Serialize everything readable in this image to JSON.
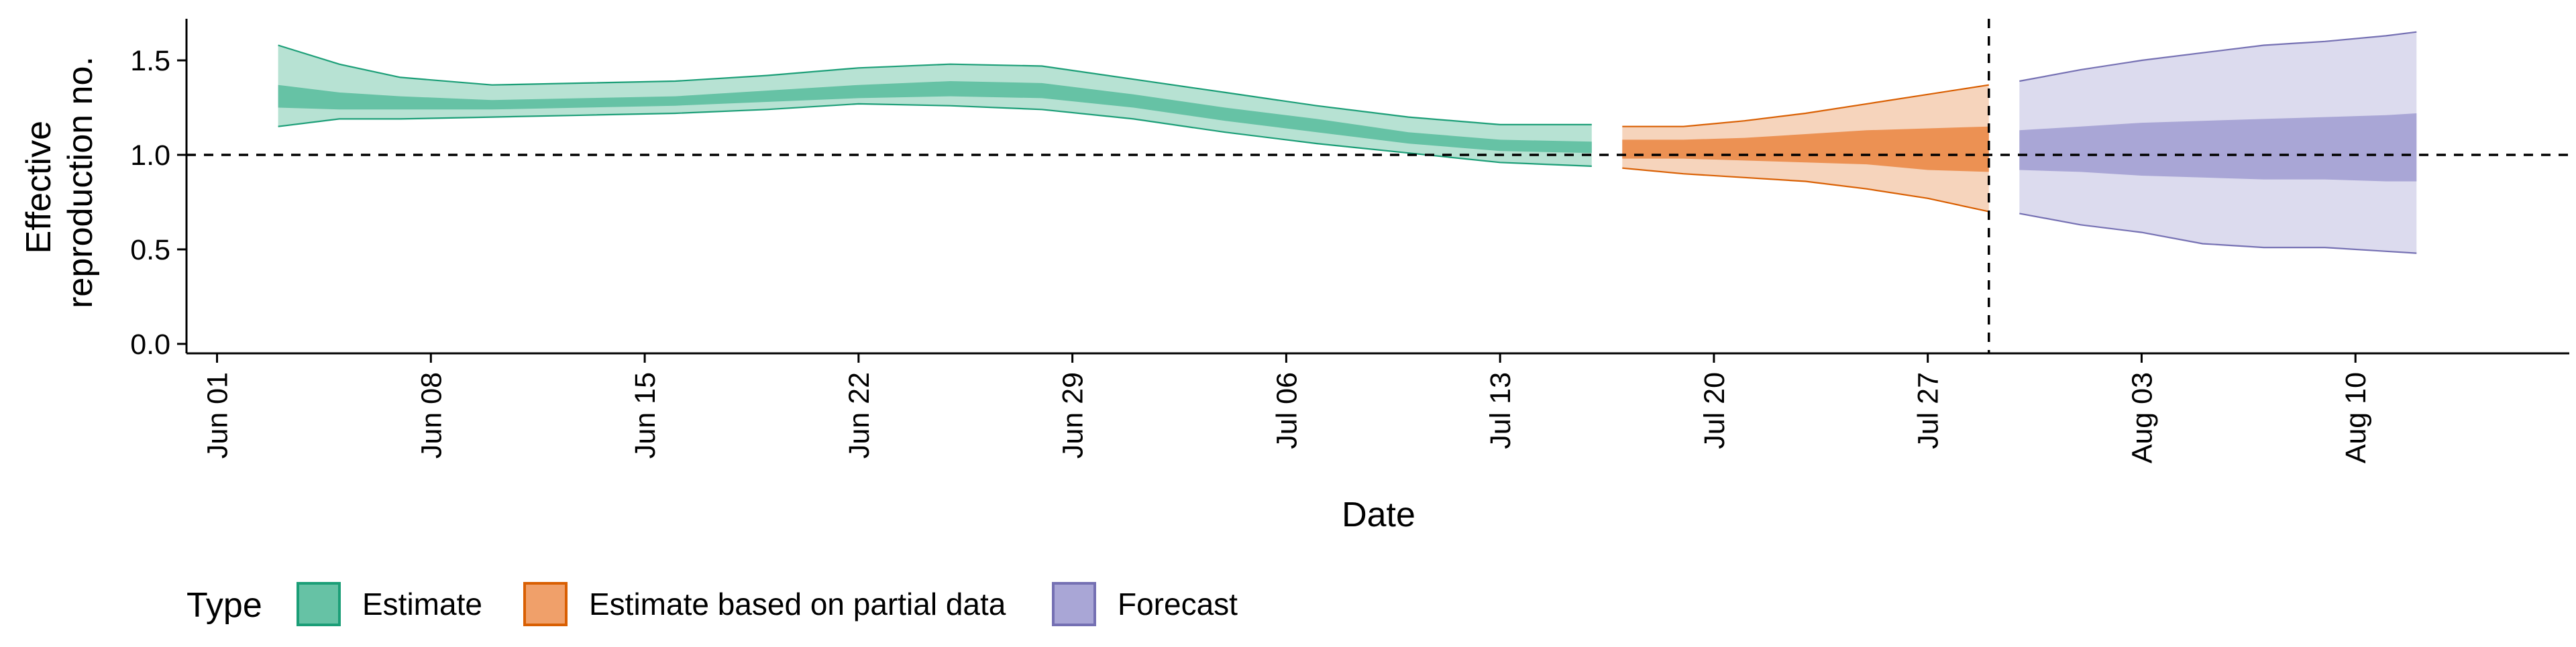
{
  "chart_data": {
    "type": "area",
    "xlabel": "Date",
    "ylabel_lines": [
      "Effective",
      "reproduction no."
    ],
    "x_start": "2020-05-31",
    "xlim": [
      "2020-05-31",
      "2020-08-17"
    ],
    "ylim": [
      -0.05,
      1.72
    ],
    "x_ticks": [
      {
        "date": "2020-06-01",
        "label": "Jun 01"
      },
      {
        "date": "2020-06-08",
        "label": "Jun 08"
      },
      {
        "date": "2020-06-15",
        "label": "Jun 15"
      },
      {
        "date": "2020-06-22",
        "label": "Jun 22"
      },
      {
        "date": "2020-06-29",
        "label": "Jun 29"
      },
      {
        "date": "2020-07-06",
        "label": "Jul 06"
      },
      {
        "date": "2020-07-13",
        "label": "Jul 13"
      },
      {
        "date": "2020-07-20",
        "label": "Jul 20"
      },
      {
        "date": "2020-07-27",
        "label": "Jul 27"
      },
      {
        "date": "2020-08-03",
        "label": "Aug 03"
      },
      {
        "date": "2020-08-10",
        "label": "Aug 10"
      }
    ],
    "y_ticks": [
      {
        "value": 0.0,
        "label": "0.0"
      },
      {
        "value": 0.5,
        "label": "0.5"
      },
      {
        "value": 1.0,
        "label": "1.0"
      },
      {
        "value": 1.5,
        "label": "1.5"
      }
    ],
    "reference_line_y": 1.0,
    "reference_line_x": "2020-07-29",
    "legend": {
      "title": "Type",
      "position": "bottom-left",
      "entries": [
        {
          "label": "Estimate",
          "fill": "#66C2A5",
          "stroke": "#1B9E77"
        },
        {
          "label": "Estimate based on partial data",
          "fill": "#F0A06A",
          "stroke": "#D95F02"
        },
        {
          "label": "Forecast",
          "fill": "#A9A6D6",
          "stroke": "#7570B3"
        }
      ]
    },
    "series": [
      {
        "name": "Estimate",
        "outer_fill": "#B7E2D3",
        "inner_fill": "#66C2A5",
        "stroke": "#1B9E77",
        "x": [
          "2020-06-03",
          "2020-06-05",
          "2020-06-07",
          "2020-06-10",
          "2020-06-13",
          "2020-06-16",
          "2020-06-19",
          "2020-06-22",
          "2020-06-25",
          "2020-06-28",
          "2020-07-01",
          "2020-07-04",
          "2020-07-07",
          "2020-07-10",
          "2020-07-13",
          "2020-07-16"
        ],
        "lower90": [
          1.15,
          1.19,
          1.19,
          1.2,
          1.21,
          1.22,
          1.24,
          1.27,
          1.26,
          1.24,
          1.19,
          1.12,
          1.06,
          1.01,
          0.96,
          0.94
        ],
        "upper90": [
          1.58,
          1.48,
          1.41,
          1.37,
          1.38,
          1.39,
          1.42,
          1.46,
          1.48,
          1.47,
          1.4,
          1.33,
          1.26,
          1.2,
          1.16,
          1.16
        ],
        "lower50": [
          1.25,
          1.24,
          1.24,
          1.24,
          1.25,
          1.26,
          1.28,
          1.3,
          1.31,
          1.3,
          1.25,
          1.18,
          1.12,
          1.06,
          1.02,
          1.01
        ],
        "upper50": [
          1.37,
          1.33,
          1.31,
          1.29,
          1.3,
          1.31,
          1.34,
          1.37,
          1.39,
          1.38,
          1.32,
          1.25,
          1.19,
          1.12,
          1.08,
          1.07
        ]
      },
      {
        "name": "Estimate based on partial data",
        "outer_fill": "#F6D4BC",
        "inner_fill": "#EC9153",
        "stroke": "#D95F02",
        "x": [
          "2020-07-17",
          "2020-07-19",
          "2020-07-21",
          "2020-07-23",
          "2020-07-25",
          "2020-07-27",
          "2020-07-29"
        ],
        "lower90": [
          0.93,
          0.9,
          0.88,
          0.86,
          0.82,
          0.77,
          0.7
        ],
        "upper90": [
          1.15,
          1.15,
          1.18,
          1.22,
          1.27,
          1.32,
          1.37
        ],
        "lower50": [
          0.98,
          0.98,
          0.97,
          0.96,
          0.95,
          0.92,
          0.91
        ],
        "upper50": [
          1.08,
          1.08,
          1.09,
          1.11,
          1.13,
          1.14,
          1.15
        ]
      },
      {
        "name": "Forecast",
        "outer_fill": "#DCDBEE",
        "inner_fill": "#A9A6D6",
        "stroke": "#7570B3",
        "x": [
          "2020-07-30",
          "2020-08-01",
          "2020-08-03",
          "2020-08-05",
          "2020-08-07",
          "2020-08-09",
          "2020-08-11",
          "2020-08-12"
        ],
        "lower90": [
          0.69,
          0.63,
          0.59,
          0.53,
          0.51,
          0.51,
          0.49,
          0.48
        ],
        "upper90": [
          1.39,
          1.45,
          1.5,
          1.54,
          1.58,
          1.6,
          1.63,
          1.65
        ],
        "lower50": [
          0.92,
          0.91,
          0.89,
          0.88,
          0.87,
          0.87,
          0.86,
          0.86
        ],
        "upper50": [
          1.13,
          1.15,
          1.17,
          1.18,
          1.19,
          1.2,
          1.21,
          1.22
        ]
      }
    ]
  }
}
